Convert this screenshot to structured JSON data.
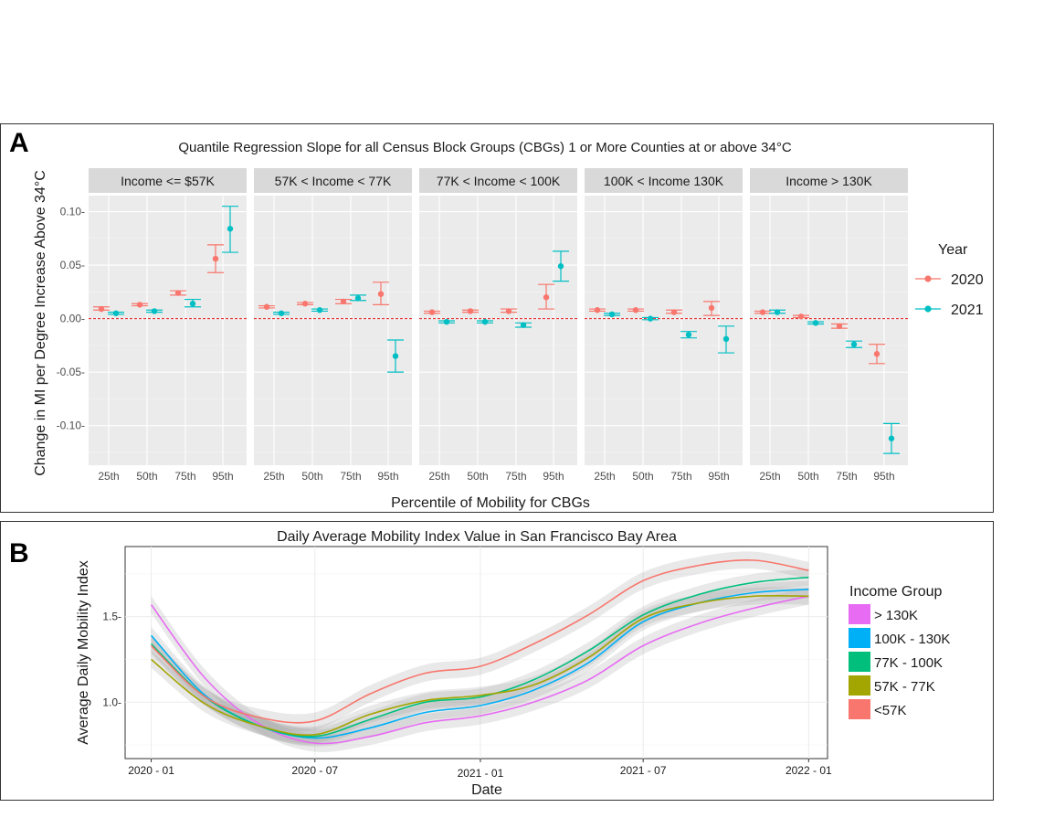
{
  "panel_a": {
    "letter": "A",
    "chart_data": {
      "type": "scatter",
      "title": "Quantile Regression Slope for all Census Block Groups (CBGs) 1 or More Counties at or above 34°C",
      "xlabel": "Percentile of Mobility for CBGs",
      "ylabel": "Change in MI per Degree Increase Above 34°C",
      "ylim": [
        -0.137,
        0.115
      ],
      "yticks": [
        0.1,
        0.05,
        0.0,
        -0.05,
        -0.1
      ],
      "ytick_labels": [
        "0.10-",
        "0.05-",
        "0.00-",
        "-0.05-",
        "-0.10-"
      ],
      "categories": [
        "25th",
        "50th",
        "75th",
        "95th"
      ],
      "reference_line": 0.0,
      "legend": {
        "title": "Year",
        "position": "right",
        "entries": [
          {
            "name": "2020",
            "color": "#F8766D"
          },
          {
            "name": "2021",
            "color": "#00BFC4"
          }
        ]
      },
      "facets": [
        {
          "label": "Income <= $57K",
          "series": [
            {
              "name": "2020",
              "values": [
                0.009,
                0.013,
                0.024,
                0.056
              ],
              "lower": [
                0.008,
                0.012,
                0.022,
                0.043
              ],
              "upper": [
                0.011,
                0.014,
                0.026,
                0.069
              ]
            },
            {
              "name": "2021",
              "values": [
                0.005,
                0.007,
                0.014,
                0.084
              ],
              "lower": [
                0.004,
                0.006,
                0.011,
                0.062
              ],
              "upper": [
                0.006,
                0.008,
                0.018,
                0.105
              ]
            }
          ]
        },
        {
          "label": "57K < Income < 77K",
          "series": [
            {
              "name": "2020",
              "values": [
                0.011,
                0.014,
                0.016,
                0.023
              ],
              "lower": [
                0.01,
                0.013,
                0.014,
                0.013
              ],
              "upper": [
                0.012,
                0.015,
                0.018,
                0.034
              ]
            },
            {
              "name": "2021",
              "values": [
                0.005,
                0.008,
                0.019,
                -0.035
              ],
              "lower": [
                0.004,
                0.007,
                0.017,
                -0.05
              ],
              "upper": [
                0.006,
                0.009,
                0.022,
                -0.02
              ]
            }
          ]
        },
        {
          "label": "77K < Income < 100K",
          "series": [
            {
              "name": "2020",
              "values": [
                0.006,
                0.007,
                0.007,
                0.02
              ],
              "lower": [
                0.005,
                0.006,
                0.006,
                0.009
              ],
              "upper": [
                0.007,
                0.008,
                0.009,
                0.032
              ]
            },
            {
              "name": "2021",
              "values": [
                -0.003,
                -0.003,
                -0.006,
                0.049
              ],
              "lower": [
                -0.004,
                -0.004,
                -0.008,
                0.035
              ],
              "upper": [
                -0.002,
                -0.002,
                -0.004,
                0.063
              ]
            }
          ]
        },
        {
          "label": "100K < Income 130K",
          "series": [
            {
              "name": "2020",
              "values": [
                0.008,
                0.008,
                0.006,
                0.01
              ],
              "lower": [
                0.007,
                0.007,
                0.005,
                0.003
              ],
              "upper": [
                0.009,
                0.009,
                0.008,
                0.016
              ]
            },
            {
              "name": "2021",
              "values": [
                0.004,
                0.0,
                -0.015,
                -0.019
              ],
              "lower": [
                0.003,
                -0.001,
                -0.018,
                -0.032
              ],
              "upper": [
                0.005,
                0.001,
                -0.012,
                -0.007
              ]
            }
          ]
        },
        {
          "label": "Income > 130K",
          "series": [
            {
              "name": "2020",
              "values": [
                0.006,
                0.002,
                -0.007,
                -0.033
              ],
              "lower": [
                0.005,
                0.001,
                -0.009,
                -0.042
              ],
              "upper": [
                0.007,
                0.003,
                -0.005,
                -0.024
              ]
            },
            {
              "name": "2021",
              "values": [
                0.006,
                -0.004,
                -0.024,
                -0.112
              ],
              "lower": [
                0.005,
                -0.005,
                -0.027,
                -0.126
              ],
              "upper": [
                0.008,
                -0.003,
                -0.021,
                -0.098
              ]
            }
          ]
        }
      ]
    }
  },
  "panel_b": {
    "letter": "B",
    "chart_data": {
      "type": "line",
      "title": "Daily Average Mobility Index Value in San Francisco Bay Area",
      "xlabel": "Date",
      "ylabel": "Average Daily Mobility Index",
      "xlim": [
        "2019-12-03",
        "2022-01-22"
      ],
      "ylim": [
        0.67,
        1.91
      ],
      "yticks": [
        1.0,
        1.5
      ],
      "ytick_labels": [
        "1.0-",
        "1.5-"
      ],
      "xticks": [
        "2020-01-01",
        "2020-07-01",
        "2021-01-01",
        "2021-07-01",
        "2022-01-01"
      ],
      "xtick_labels": [
        "2020 - 01",
        "2020 - 07",
        "2021 - 01",
        "2021 - 07",
        "2022 - 01"
      ],
      "band_half_width": 0.05,
      "legend": {
        "title": "Income Group",
        "position": "right",
        "entries": [
          {
            "name": "> 130K",
            "color": "#E76BF3"
          },
          {
            "name": "100K - 130K",
            "color": "#00B0F6"
          },
          {
            "name": "77K - 100K",
            "color": "#00BF7D"
          },
          {
            "name": "57K - 77K",
            "color": "#A3A500"
          },
          {
            "name": "<57K",
            "color": "#F8766D"
          }
        ]
      },
      "series": [
        {
          "name": "> 130K",
          "color": "#E76BF3",
          "x": [
            "2020-01-01",
            "2020-03-01",
            "2020-05-01",
            "2020-07-01",
            "2020-09-01",
            "2020-11-01",
            "2021-01-01",
            "2021-03-01",
            "2021-05-01",
            "2021-07-01",
            "2021-09-01",
            "2021-11-01",
            "2022-01-01"
          ],
          "y": [
            1.57,
            1.14,
            0.87,
            0.76,
            0.8,
            0.88,
            0.92,
            1.0,
            1.13,
            1.33,
            1.46,
            1.55,
            1.62
          ]
        },
        {
          "name": "100K - 130K",
          "color": "#00B0F6",
          "x": [
            "2020-01-01",
            "2020-03-01",
            "2020-05-01",
            "2020-07-01",
            "2020-09-01",
            "2020-11-01",
            "2021-01-01",
            "2021-03-01",
            "2021-05-01",
            "2021-07-01",
            "2021-09-01",
            "2021-11-01",
            "2022-01-01"
          ],
          "y": [
            1.39,
            1.04,
            0.86,
            0.79,
            0.85,
            0.94,
            0.98,
            1.07,
            1.23,
            1.47,
            1.58,
            1.64,
            1.66
          ]
        },
        {
          "name": "77K - 100K",
          "color": "#00BF7D",
          "x": [
            "2020-01-01",
            "2020-03-01",
            "2020-05-01",
            "2020-07-01",
            "2020-09-01",
            "2020-11-01",
            "2021-01-01",
            "2021-03-01",
            "2021-05-01",
            "2021-07-01",
            "2021-09-01",
            "2021-11-01",
            "2022-01-01"
          ],
          "y": [
            1.34,
            1.03,
            0.86,
            0.8,
            0.9,
            1.0,
            1.03,
            1.13,
            1.3,
            1.51,
            1.63,
            1.7,
            1.73
          ]
        },
        {
          "name": "57K - 77K",
          "color": "#A3A500",
          "x": [
            "2020-01-01",
            "2020-03-01",
            "2020-05-01",
            "2020-07-01",
            "2020-09-01",
            "2020-11-01",
            "2021-01-01",
            "2021-03-01",
            "2021-05-01",
            "2021-07-01",
            "2021-09-01",
            "2021-11-01",
            "2022-01-01"
          ],
          "y": [
            1.25,
            0.99,
            0.86,
            0.81,
            0.93,
            1.01,
            1.04,
            1.1,
            1.26,
            1.49,
            1.58,
            1.62,
            1.62
          ]
        },
        {
          "name": "<57K",
          "color": "#F8766D",
          "x": [
            "2020-01-01",
            "2020-03-01",
            "2020-05-01",
            "2020-07-01",
            "2020-09-01",
            "2020-11-01",
            "2021-01-01",
            "2021-03-01",
            "2021-05-01",
            "2021-07-01",
            "2021-09-01",
            "2021-11-01",
            "2022-01-01"
          ],
          "y": [
            1.33,
            1.03,
            0.91,
            0.89,
            1.05,
            1.17,
            1.21,
            1.34,
            1.51,
            1.71,
            1.8,
            1.83,
            1.77
          ]
        }
      ]
    }
  }
}
